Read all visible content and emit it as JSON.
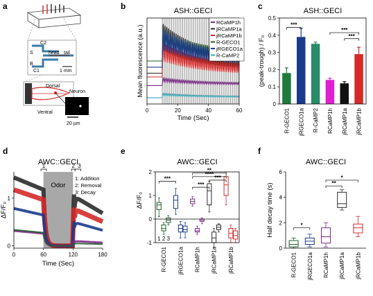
{
  "labels": {
    "a": "a",
    "b": "b",
    "c": "c",
    "d": "d",
    "e": "e",
    "f": "f"
  },
  "schematic": {
    "s_label": "S",
    "c2_label": "C2",
    "b_label": "B",
    "c1_label": "C1",
    "head_label": "head",
    "tail_label": "tail",
    "scale_mm": "1 mm",
    "dorsal": "Dorsal",
    "ventral": "Ventral",
    "neuron": "Neuron",
    "scale_um": "20 µm"
  },
  "colors": {
    "RCaMP1h": "#7a2a85",
    "jRCaMP1a": "#2b2b2b",
    "jRCaMP1b": "#d42a2a",
    "R-GECO1": "#1f5c2a",
    "jRGECO1a": "#1a3a8c",
    "R-CaMP2": "#3aa7b8",
    "bar_rgeco1": "#1f7a3c",
    "bar_jrgeco1a": "#1a3a8c",
    "bar_rcamp2": "#2a8a6a",
    "bar_rcamp1h": "#e020d0",
    "bar_jrcamp1a": "#111111",
    "bar_jrcamp1b": "#d42a2a",
    "stim": "#999999",
    "odor": "#a8a8a8"
  },
  "chart_data": [
    {
      "panel": "b",
      "type": "line",
      "title": "ASH::GECI",
      "xlabel": "Time (Sec)",
      "ylabel": "Mean fluorescence (a.u.)",
      "xlim": [
        0,
        60
      ],
      "xticks": [
        "0",
        "20",
        "40",
        "60"
      ],
      "stim_region": [
        10,
        60
      ],
      "series": [
        {
          "name": "RCaMP1h",
          "base": 1.5,
          "peak": 0.5
        },
        {
          "name": "jRCaMP1a",
          "base": 2.5,
          "peak": 3.3
        },
        {
          "name": "jRCaMP1b",
          "base": 2.2,
          "peak": 2.3
        },
        {
          "name": "R-GECO1",
          "base": 3.5,
          "peak": 2.0
        },
        {
          "name": "jRGECO1a",
          "base": 3.0,
          "peak": 2.5
        },
        {
          "name": "R-CaMP2",
          "base": 0.5,
          "peak": 0.3
        }
      ]
    },
    {
      "panel": "c",
      "type": "bar",
      "title": "ASH::GECI",
      "ylabel": "(peak-trough) / F₀",
      "ylim": [
        0,
        0.5
      ],
      "yticks": [
        "0",
        "0.1",
        "0.2",
        "0.3",
        "0.4",
        "0.5"
      ],
      "categories": [
        "R-GECO1",
        "jRGECO1a",
        "R-CaMP2",
        "RCaMP1h",
        "jRCaMP1a",
        "jRCaMP1b"
      ],
      "values": [
        0.18,
        0.39,
        0.35,
        0.14,
        0.12,
        0.29
      ],
      "errors": [
        0.03,
        0.05,
        0.01,
        0.01,
        0.01,
        0.04
      ],
      "significance": [
        "***",
        "***",
        "***"
      ]
    },
    {
      "panel": "d",
      "type": "line",
      "title": "AWC::GECI",
      "xlabel": "Time (Sec)",
      "ylabel": "ΔF/F₀",
      "xlim": [
        0,
        180
      ],
      "ylim": [
        0,
        1
      ],
      "xticks": [
        "0",
        "60",
        "120",
        "180"
      ],
      "yticks": [
        "0",
        "1"
      ],
      "odor_window": [
        60,
        120
      ],
      "odor_label": "Odor",
      "phase_markers": [
        "1",
        "2",
        "3"
      ],
      "legend": [
        "1: Addition",
        "2: Removal",
        "3: Decay"
      ]
    },
    {
      "panel": "e",
      "type": "box",
      "title": "AWC::GECI",
      "ylabel": "ΔF/F₀",
      "ylim": [
        -1,
        2
      ],
      "yticks": [
        "-1",
        "0",
        "1",
        "2"
      ],
      "categories": [
        "R-GECO1",
        "jRGECO1a",
        "RCaMP1h",
        "jRCaMP1a",
        "jRCaMP1b"
      ],
      "phase_labels": [
        "1",
        "2",
        "3"
      ],
      "boxes": [
        {
          "group": "R-GECO1",
          "phase": 1,
          "q1": 0.4,
          "med": 0.6,
          "q3": 0.7,
          "lo": 0.1,
          "hi": 0.9
        },
        {
          "group": "R-GECO1",
          "phase": 2,
          "q1": -0.5,
          "med": -0.4,
          "q3": -0.25,
          "lo": -0.65,
          "hi": -0.15
        },
        {
          "group": "R-GECO1",
          "phase": 3,
          "q1": -0.15,
          "med": -0.05,
          "q3": 0.05,
          "lo": -0.25,
          "hi": 0.15
        },
        {
          "group": "jRGECO1a",
          "phase": 1,
          "q1": 0.45,
          "med": 0.8,
          "q3": 1.0,
          "lo": 0.2,
          "hi": 1.3
        },
        {
          "group": "jRGECO1a",
          "phase": 2,
          "q1": -0.55,
          "med": -0.4,
          "q3": -0.25,
          "lo": -0.8,
          "hi": -0.1
        },
        {
          "group": "jRGECO1a",
          "phase": 3,
          "q1": -0.55,
          "med": -0.45,
          "q3": -0.3,
          "lo": -0.8,
          "hi": -0.15
        },
        {
          "group": "RCaMP1h",
          "phase": 1,
          "q1": 0.65,
          "med": 0.75,
          "q3": 0.85,
          "lo": 0.55,
          "hi": 0.95
        },
        {
          "group": "RCaMP1h",
          "phase": 2,
          "q1": -0.55,
          "med": -0.5,
          "q3": -0.4,
          "lo": -0.65,
          "hi": -0.3
        },
        {
          "group": "RCaMP1h",
          "phase": 3,
          "q1": -0.1,
          "med": -0.05,
          "q3": 0.0,
          "lo": -0.2,
          "hi": 0.05
        },
        {
          "group": "jRCaMP1a",
          "phase": 1,
          "q1": 0.6,
          "med": 1.2,
          "q3": 1.5,
          "lo": 0.3,
          "hi": 1.6
        },
        {
          "group": "jRCaMP1a",
          "phase": 2,
          "q1": -1.0,
          "med": -0.8,
          "q3": -0.55,
          "lo": -1.2,
          "hi": -0.4
        },
        {
          "group": "jRCaMP1a",
          "phase": 3,
          "q1": -0.45,
          "med": -0.35,
          "q3": -0.25,
          "lo": -0.55,
          "hi": -0.2
        },
        {
          "group": "jRCaMP1b",
          "phase": 1,
          "q1": 1.0,
          "med": 1.45,
          "q3": 1.8,
          "lo": 0.6,
          "hi": 2.0
        },
        {
          "group": "jRCaMP1b",
          "phase": 2,
          "q1": -0.8,
          "med": -0.6,
          "q3": -0.4,
          "lo": -1.0,
          "hi": -0.25
        },
        {
          "group": "jRCaMP1b",
          "phase": 3,
          "q1": -0.85,
          "med": -0.7,
          "q3": -0.5,
          "lo": -1.0,
          "hi": -0.4
        }
      ],
      "significance": [
        "***",
        "***",
        "**",
        "****",
        "***"
      ]
    },
    {
      "panel": "f",
      "type": "box",
      "title": "AWC::GECI",
      "ylabel": "Half decay time (s)",
      "ylim": [
        0,
        6
      ],
      "yticks": [
        "0",
        "2",
        "4",
        "6"
      ],
      "categories": [
        "R-GECO1",
        "jRGECO1a",
        "RCaMP1h",
        "jRCaMP1a",
        "jRCaMP1b"
      ],
      "boxes": [
        {
          "group": "R-GECO1",
          "q1": 0.1,
          "med": 0.3,
          "q3": 0.6,
          "lo": 0.0,
          "hi": 0.8
        },
        {
          "group": "jRGECO1a",
          "q1": 0.3,
          "med": 0.55,
          "q3": 0.8,
          "lo": 0.1,
          "hi": 1.1
        },
        {
          "group": "RCaMP1h",
          "q1": 0.4,
          "med": 0.9,
          "q3": 1.6,
          "lo": 0.1,
          "hi": 2.0
        },
        {
          "group": "jRCaMP1a",
          "q1": 3.2,
          "med": 3.5,
          "q3": 4.4,
          "lo": 3.0,
          "hi": 4.6
        },
        {
          "group": "jRCaMP1b",
          "q1": 1.2,
          "med": 1.6,
          "q3": 1.9,
          "lo": 0.9,
          "hi": 2.5
        }
      ],
      "significance": [
        "*",
        "**",
        "*"
      ]
    }
  ]
}
